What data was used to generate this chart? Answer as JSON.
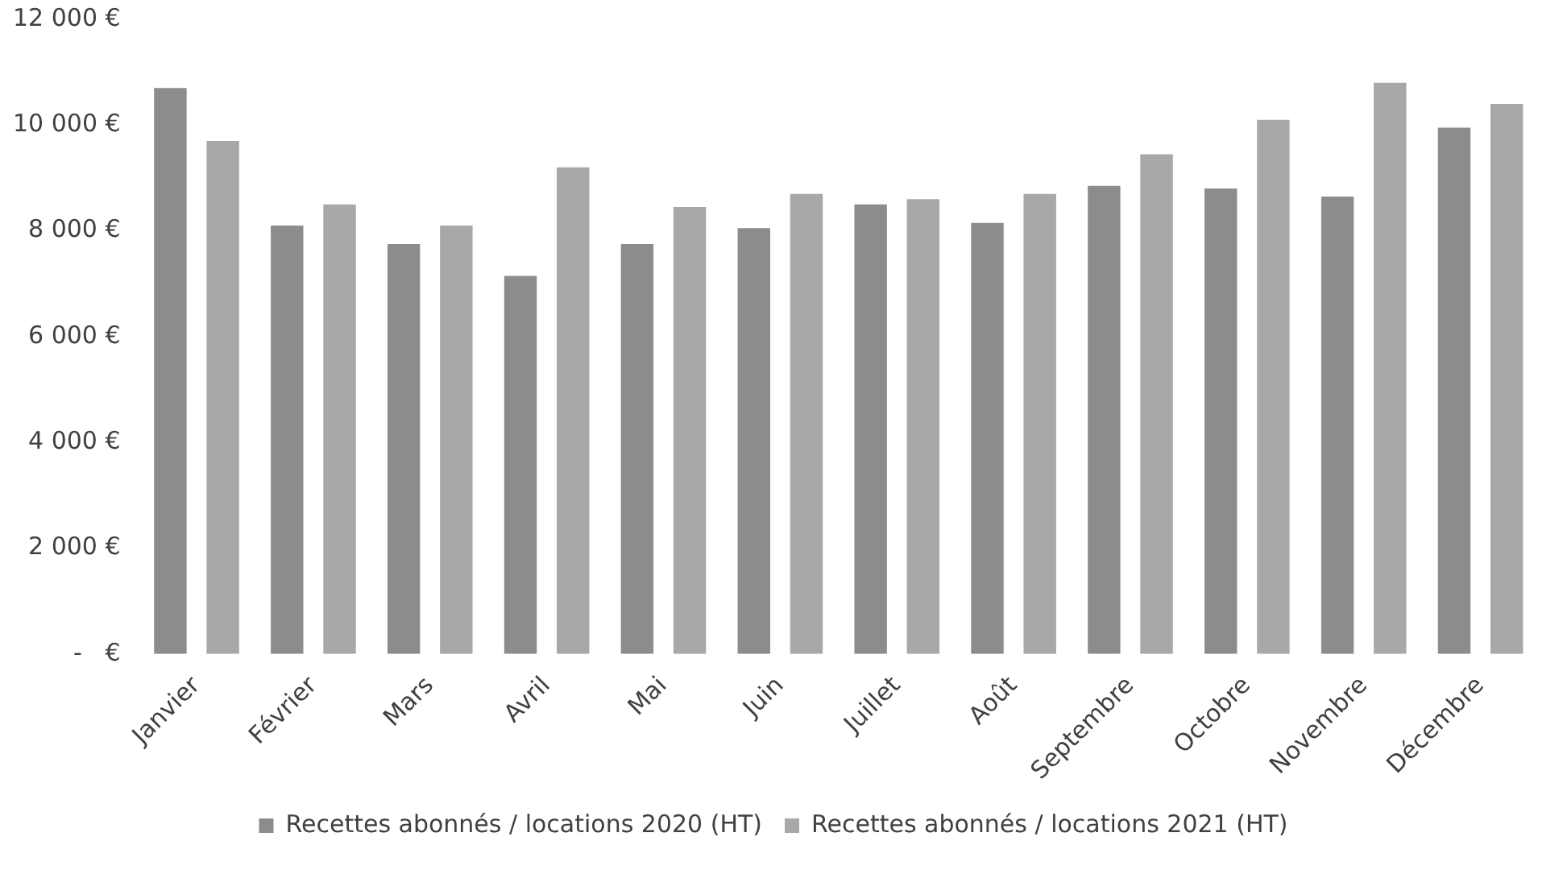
{
  "chart_data": {
    "type": "bar",
    "categories": [
      "Janvier",
      "Février",
      "Mars",
      "Avril",
      "Mai",
      "Juin",
      "Juillet",
      "Août",
      "Septembre",
      "Octobre",
      "Novembre",
      "Décembre"
    ],
    "series": [
      {
        "name": "Recettes abonnés / locations 2020 (HT)",
        "color": "#8c8c8c",
        "values": [
          10700,
          8100,
          7750,
          7150,
          7750,
          8050,
          8500,
          8150,
          8850,
          8800,
          8650,
          9950
        ]
      },
      {
        "name": "Recettes abonnés / locations 2021 (HT)",
        "color": "#a8a8a8",
        "values": [
          9700,
          8500,
          8100,
          9200,
          8450,
          8700,
          8600,
          8700,
          9450,
          10100,
          10800,
          10400
        ]
      }
    ],
    "ylim": [
      0,
      12000
    ],
    "yticks": [
      {
        "value": 0,
        "label": "-   €"
      },
      {
        "value": 2000,
        "label": "2 000 €"
      },
      {
        "value": 4000,
        "label": "4 000 €"
      },
      {
        "value": 6000,
        "label": "6 000 €"
      },
      {
        "value": 8000,
        "label": "8 000 €"
      },
      {
        "value": 10000,
        "label": "10 000 €"
      },
      {
        "value": 12000,
        "label": "12 000 €"
      }
    ],
    "grid": false,
    "legend": "bottom"
  }
}
